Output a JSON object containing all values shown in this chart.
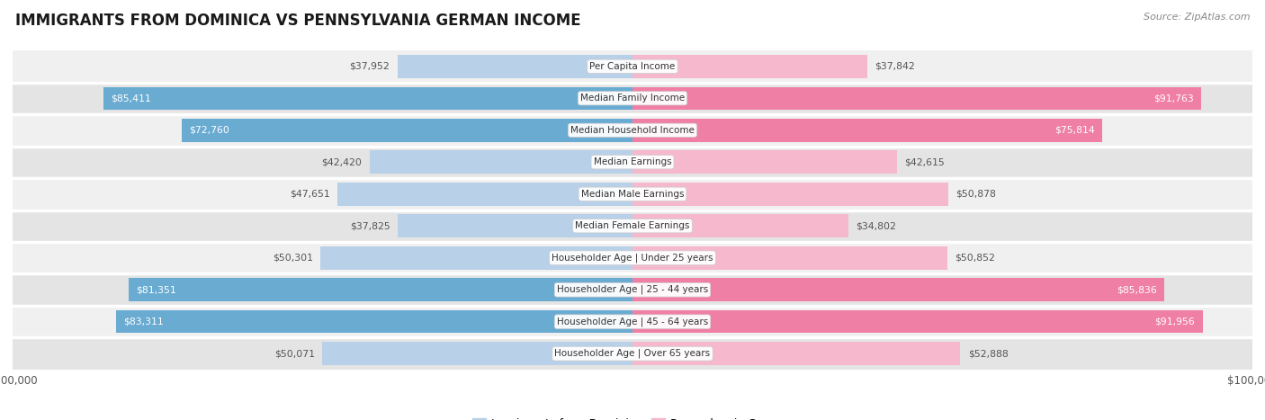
{
  "title": "IMMIGRANTS FROM DOMINICA VS PENNSYLVANIA GERMAN INCOME",
  "source": "Source: ZipAtlas.com",
  "categories": [
    "Per Capita Income",
    "Median Family Income",
    "Median Household Income",
    "Median Earnings",
    "Median Male Earnings",
    "Median Female Earnings",
    "Householder Age | Under 25 years",
    "Householder Age | 25 - 44 years",
    "Householder Age | 45 - 64 years",
    "Householder Age | Over 65 years"
  ],
  "dominica_values": [
    37952,
    85411,
    72760,
    42420,
    47651,
    37825,
    50301,
    81351,
    83311,
    50071
  ],
  "pennsylvania_values": [
    37842,
    91763,
    75814,
    42615,
    50878,
    34802,
    50852,
    85836,
    91956,
    52888
  ],
  "dominica_labels": [
    "$37,952",
    "$85,411",
    "$72,760",
    "$42,420",
    "$47,651",
    "$37,825",
    "$50,301",
    "$81,351",
    "$83,311",
    "$50,071"
  ],
  "pennsylvania_labels": [
    "$37,842",
    "$91,763",
    "$75,814",
    "$42,615",
    "$50,878",
    "$34,802",
    "$50,852",
    "$85,836",
    "$91,956",
    "$52,888"
  ],
  "max_value": 100000,
  "dominica_color_light": "#b8d0e8",
  "dominica_color_dark": "#6aabd2",
  "pennsylvania_color_light": "#f5b8cc",
  "pennsylvania_color_dark": "#ef7fa4",
  "label_threshold": 65000,
  "row_bg_even": "#f0f0f0",
  "row_bg_odd": "#e4e4e4",
  "bar_height": 0.72,
  "fig_width": 14.06,
  "fig_height": 4.67,
  "legend_dominica": "Immigrants from Dominica",
  "legend_pennsylvania": "Pennsylvania German",
  "title_fontsize": 12,
  "source_fontsize": 8,
  "label_fontsize": 7.8,
  "cat_fontsize": 7.5
}
